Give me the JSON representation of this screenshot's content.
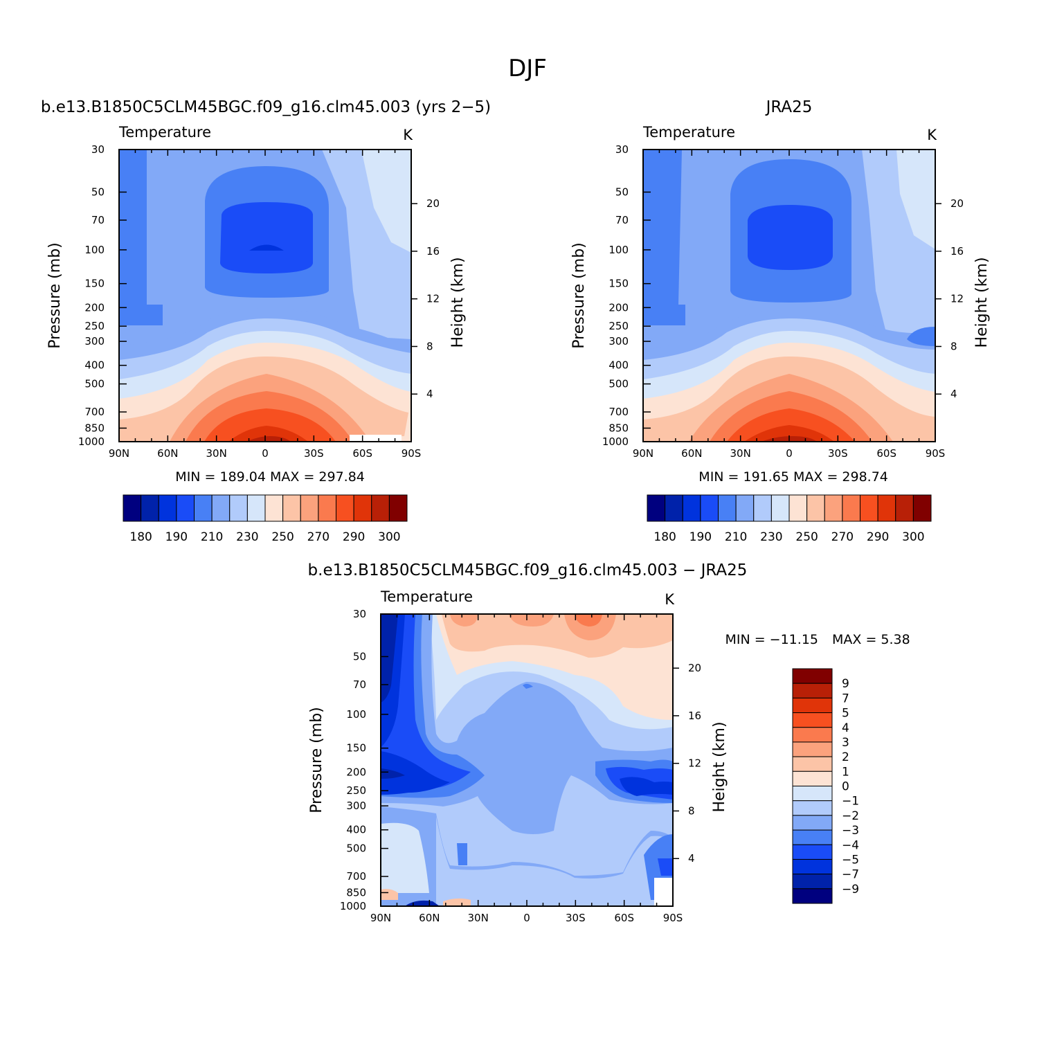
{
  "title": "DJF",
  "panels": [
    {
      "subtitle": "b.e13.B1850C5CLM45BGC.f09_g16.clm45.003 (yrs 2−5)",
      "label_left": "Temperature",
      "label_right": "K",
      "xticks": [
        "90N",
        "60N",
        "30N",
        "0",
        "30S",
        "60S",
        "90S"
      ],
      "pressure_ticks": [
        "30",
        "50",
        "70",
        "100",
        "150",
        "200",
        "250",
        "300",
        "400",
        "500",
        "700",
        "850",
        "1000"
      ],
      "height_ticks": [
        "20",
        "16",
        "12",
        "8",
        "4"
      ],
      "ylabel": "Pressure (mb)",
      "ylabel_right": "Height (km)",
      "min_label": "MIN = 189.04",
      "max_label": "MAX = 297.84",
      "colorbar": [
        "180",
        "190",
        "210",
        "230",
        "250",
        "270",
        "290",
        "300"
      ]
    },
    {
      "subtitle": "JRA25",
      "label_left": "Temperature",
      "label_right": "K",
      "xticks": [
        "90N",
        "60N",
        "30N",
        "0",
        "30S",
        "60S",
        "90S"
      ],
      "pressure_ticks": [
        "30",
        "50",
        "70",
        "100",
        "150",
        "200",
        "250",
        "300",
        "400",
        "500",
        "700",
        "850",
        "1000"
      ],
      "height_ticks": [
        "20",
        "16",
        "12",
        "8",
        "4"
      ],
      "ylabel": "Pressure (mb)",
      "ylabel_right": "Height (km)",
      "min_label": "MIN = 191.65",
      "max_label": "MAX = 298.74",
      "colorbar": [
        "180",
        "190",
        "210",
        "230",
        "250",
        "270",
        "290",
        "300"
      ]
    },
    {
      "subtitle": "b.e13.B1850C5CLM45BGC.f09_g16.clm45.003 − JRA25",
      "label_left": "Temperature",
      "label_right": "K",
      "xticks": [
        "90N",
        "60N",
        "30N",
        "0",
        "30S",
        "60S",
        "90S"
      ],
      "pressure_ticks": [
        "30",
        "50",
        "70",
        "100",
        "150",
        "200",
        "250",
        "300",
        "400",
        "500",
        "700",
        "850",
        "1000"
      ],
      "height_ticks": [
        "20",
        "16",
        "12",
        "8",
        "4"
      ],
      "ylabel": "Pressure (mb)",
      "ylabel_right": "Height (km)",
      "min_label": "MIN = −11.15",
      "max_label": "MAX = 5.38",
      "colorbar": [
        "9",
        "7",
        "5",
        "4",
        "3",
        "2",
        "1",
        "0",
        "−1",
        "−2",
        "−3",
        "−4",
        "−5",
        "−7",
        "−9"
      ]
    }
  ],
  "colors": {
    "temp_scale": [
      "#00007f",
      "#0022aa",
      "#0033dd",
      "#1a4cf7",
      "#4880f5",
      "#82a9f7",
      "#b1cbfb",
      "#d6e6fa",
      "#fde3d4",
      "#fcc4a7",
      "#fba27d",
      "#fa7a4e",
      "#f75020",
      "#e03409",
      "#b82007",
      "#800000"
    ],
    "diff_scale": [
      "#00007f",
      "#0022aa",
      "#0033dd",
      "#1a4cf7",
      "#4880f5",
      "#82a9f7",
      "#b1cbfb",
      "#d6e6fa",
      "#fde3d4",
      "#fcc4a7",
      "#fba27d",
      "#fa7a4e",
      "#f75020",
      "#e03409",
      "#b82007",
      "#800000"
    ]
  },
  "chart_data": [
    {
      "type": "heatmap",
      "title": "b.e13.B1850C5CLM45BGC.f09_g16.clm45.003 (yrs 2−5)",
      "variable": "Temperature",
      "units": "K",
      "xlabel": "",
      "ylabel": "Pressure (mb)",
      "ylabel_right": "Height (km)",
      "x_range": [
        90,
        -90
      ],
      "pressure_levels": [
        30,
        50,
        70,
        100,
        150,
        200,
        250,
        300,
        400,
        500,
        700,
        850,
        1000
      ],
      "min": 189.04,
      "max": 297.84,
      "contour_levels": [
        180,
        185,
        190,
        200,
        210,
        220,
        230,
        240,
        250,
        260,
        270,
        280,
        290,
        295,
        300
      ]
    },
    {
      "type": "heatmap",
      "title": "JRA25",
      "variable": "Temperature",
      "units": "K",
      "xlabel": "",
      "ylabel": "Pressure (mb)",
      "ylabel_right": "Height (km)",
      "x_range": [
        90,
        -90
      ],
      "pressure_levels": [
        30,
        50,
        70,
        100,
        150,
        200,
        250,
        300,
        400,
        500,
        700,
        850,
        1000
      ],
      "min": 191.65,
      "max": 298.74,
      "contour_levels": [
        180,
        185,
        190,
        200,
        210,
        220,
        230,
        240,
        250,
        260,
        270,
        280,
        290,
        295,
        300
      ]
    },
    {
      "type": "heatmap",
      "title": "b.e13.B1850C5CLM45BGC.f09_g16.clm45.003 − JRA25",
      "variable": "Temperature",
      "units": "K",
      "xlabel": "",
      "ylabel": "Pressure (mb)",
      "ylabel_right": "Height (km)",
      "x_range": [
        90,
        -90
      ],
      "pressure_levels": [
        30,
        50,
        70,
        100,
        150,
        200,
        250,
        300,
        400,
        500,
        700,
        850,
        1000
      ],
      "min": -11.15,
      "max": 5.38,
      "contour_levels": [
        -9,
        -7,
        -5,
        -4,
        -3,
        -2,
        -1,
        0,
        1,
        2,
        3,
        4,
        5,
        7,
        9
      ]
    }
  ]
}
